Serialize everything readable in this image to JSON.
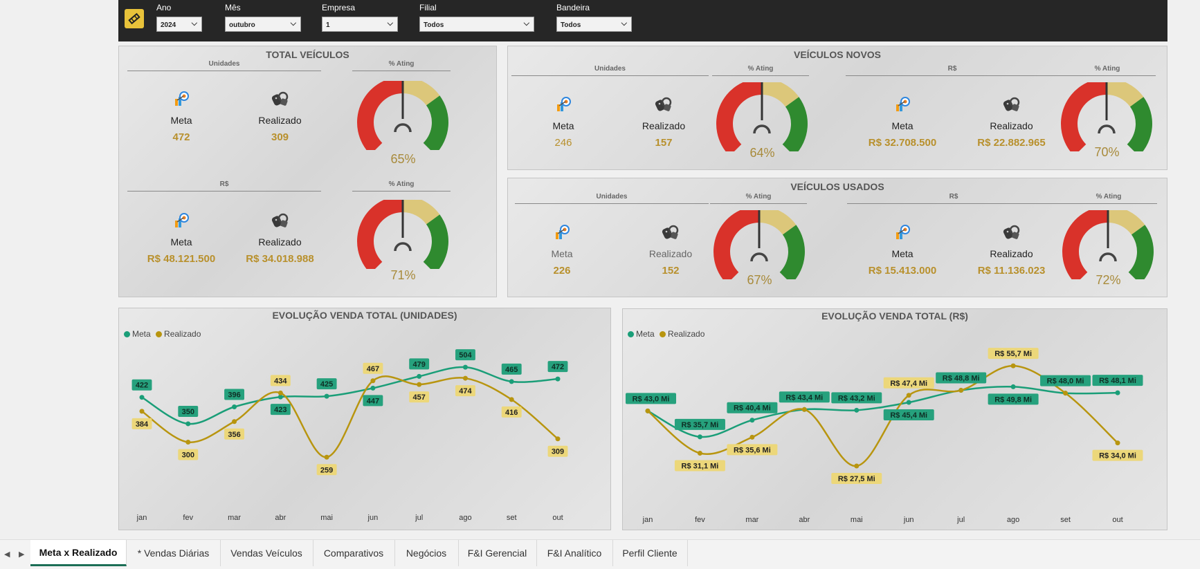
{
  "filters": [
    {
      "label": "Ano",
      "value": "2024"
    },
    {
      "label": "Mês",
      "value": "outubro"
    },
    {
      "label": "Empresa",
      "value": "1"
    },
    {
      "label": "Filial",
      "value": "Todos"
    },
    {
      "label": "Bandeira",
      "value": "Todos"
    }
  ],
  "total_veiculos": {
    "title": "TOTAL VEÍCULOS",
    "units_header": "Unidades",
    "rs_header": "R$",
    "pct_header": "% Ating",
    "units": {
      "meta_label": "Meta",
      "meta_value": "472",
      "real_label": "Realizado",
      "real_value": "309",
      "pct": "65%",
      "pct_value": 0.65
    },
    "rs": {
      "meta_label": "Meta",
      "meta_value": "R$ 48.121.500",
      "real_label": "Realizado",
      "real_value": "R$ 34.018.988",
      "pct": "71%",
      "pct_value": 0.71
    }
  },
  "veiculos_novos": {
    "title": "VEÍCULOS NOVOS",
    "units_header": "Unidades",
    "rs_header": "R$",
    "pct_header": "% Ating",
    "units": {
      "meta_label": "Meta",
      "meta_value": "246",
      "real_label": "Realizado",
      "real_value": "157",
      "pct": "64%",
      "pct_value": 0.64
    },
    "rs": {
      "meta_label": "Meta",
      "meta_value": "R$ 32.708.500",
      "real_label": "Realizado",
      "real_value": "R$ 22.882.965",
      "pct": "70%",
      "pct_value": 0.7
    }
  },
  "veiculos_usados": {
    "title": "VEÍCULOS USADOS",
    "units_header": "Unidades",
    "rs_header": "R$",
    "pct_header": "% Ating",
    "units": {
      "meta_label": "Meta",
      "meta_value": "226",
      "real_label": "Realizado",
      "real_value": "152",
      "pct": "67%",
      "pct_value": 0.67
    },
    "rs": {
      "meta_label": "Meta",
      "meta_value": "R$ 15.413.000",
      "real_label": "Realizado",
      "real_value": "R$ 11.136.023",
      "pct": "72%",
      "pct_value": 0.72
    }
  },
  "chart_data": [
    {
      "type": "line",
      "title": "EVOLUÇÃO VENDA TOTAL (UNIDADES)",
      "categories": [
        "jan",
        "fev",
        "mar",
        "abr",
        "mai",
        "jun",
        "jul",
        "ago",
        "set",
        "out"
      ],
      "series": [
        {
          "name": "Meta",
          "color": "#1a9e78",
          "values": [
            422,
            350,
            396,
            423,
            425,
            447,
            479,
            504,
            465,
            472
          ],
          "labels": [
            "422",
            "350",
            "396",
            "423",
            "425",
            "447",
            "479",
            "504",
            "465",
            "472"
          ]
        },
        {
          "name": "Realizado",
          "color": "#b8950f",
          "values": [
            384,
            300,
            356,
            434,
            259,
            467,
            457,
            474,
            416,
            309
          ],
          "labels": [
            "384",
            "300",
            "356",
            "434",
            "259",
            "467",
            "457",
            "474",
            "416",
            "309"
          ]
        }
      ],
      "legend": "top-left",
      "ylim": [
        220,
        540
      ]
    },
    {
      "type": "line",
      "title": "EVOLUÇÃO VENDA TOTAL (R$)",
      "categories": [
        "jan",
        "fev",
        "mar",
        "abr",
        "mai",
        "jun",
        "jul",
        "ago",
        "set",
        "out"
      ],
      "series": [
        {
          "name": "Meta",
          "color": "#1a9e78",
          "values": [
            43.0,
            35.7,
            40.4,
            43.4,
            43.2,
            45.4,
            48.8,
            49.8,
            48.0,
            48.1
          ],
          "labels": [
            "R$ 43,0 Mi",
            "R$ 35,7 Mi",
            "R$ 40,4 Mi",
            "R$ 43,4 Mi",
            "R$ 43,2 Mi",
            "R$ 45,4 Mi",
            "R$ 48,8 Mi",
            "R$ 49,8 Mi",
            "R$ 48,0 Mi",
            "R$ 48,1 Mi"
          ]
        },
        {
          "name": "Realizado",
          "color": "#b8950f",
          "values": [
            43.0,
            31.1,
            35.6,
            43.4,
            27.5,
            47.4,
            48.8,
            55.7,
            48.0,
            34.0
          ],
          "labels": [
            "",
            "R$ 31,1 Mi",
            "R$ 35,6 Mi",
            "",
            "R$ 27,5 Mi",
            "R$ 47,4 Mi",
            "",
            "R$ 55,7 Mi",
            "",
            "R$ 34,0 Mi"
          ]
        }
      ],
      "legend": "top-left",
      "ylim": [
        24,
        60
      ]
    }
  ],
  "tabs": [
    "Meta x Realizado",
    "* Vendas Diárias",
    "Vendas Veículos",
    "Comparativos",
    "Negócios",
    "F&I Gerencial",
    "F&I Analítico",
    "Perfil Cliente"
  ],
  "tabs_active": "Meta x Realizado",
  "colors": {
    "meta": "#1a9e78",
    "realizado": "#b8950f",
    "gauge_red": "#d9322a",
    "gauge_yellow": "#dcc77a",
    "gauge_green": "#2f8a2f"
  }
}
